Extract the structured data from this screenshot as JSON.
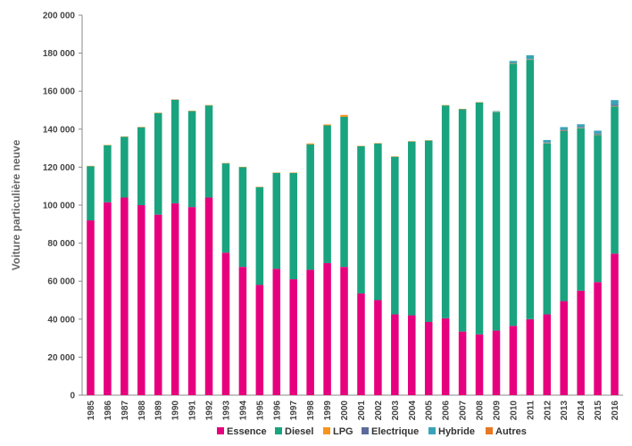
{
  "chart_data": {
    "type": "bar",
    "stacked": true,
    "title": "",
    "xlabel": "",
    "ylabel": "Voiture particulière neuve",
    "ylim": [
      0,
      200000
    ],
    "yticks": [
      0,
      20000,
      40000,
      60000,
      80000,
      100000,
      120000,
      140000,
      160000,
      180000,
      200000
    ],
    "ytick_labels": [
      "0",
      "20 000",
      "40 000",
      "60 000",
      "80 000",
      "100 000",
      "120 000",
      "140 000",
      "160 000",
      "180 000",
      "200 000"
    ],
    "grid": false,
    "legend_position": "bottom",
    "categories": [
      "1985",
      "1986",
      "1987",
      "1988",
      "1989",
      "1990",
      "1991",
      "1992",
      "1993",
      "1994",
      "1995",
      "1996",
      "1997",
      "1998",
      "1999",
      "2000",
      "2001",
      "2002",
      "2003",
      "2004",
      "2005",
      "2006",
      "2007",
      "2008",
      "2009",
      "2010",
      "2011",
      "2012",
      "2013",
      "2014",
      "2015",
      "2016"
    ],
    "series": [
      {
        "name": "Essence",
        "color": "#e6007e",
        "values": [
          92000,
          101500,
          104000,
          100000,
          95000,
          101000,
          99000,
          104000,
          75000,
          67500,
          58000,
          66500,
          61000,
          66000,
          69500,
          67500,
          53500,
          50000,
          42500,
          42000,
          38500,
          40500,
          33500,
          32000,
          34000,
          36500,
          40000,
          42500,
          49500,
          55000,
          59500,
          74500
        ]
      },
      {
        "name": "Diesel",
        "color": "#1aa37f",
        "values": [
          28500,
          30000,
          32000,
          41000,
          53500,
          54500,
          50500,
          48500,
          47000,
          52500,
          51500,
          50500,
          56000,
          66000,
          72500,
          79000,
          77500,
          82500,
          83000,
          91500,
          95500,
          112000,
          117000,
          122000,
          115000,
          138000,
          136500,
          90000,
          89500,
          85500,
          77500,
          77500
        ]
      },
      {
        "name": "LPG",
        "color": "#f7941d",
        "values": [
          200,
          200,
          200,
          200,
          200,
          200,
          200,
          200,
          200,
          200,
          200,
          200,
          200,
          500,
          500,
          1000,
          200,
          200,
          200,
          200,
          200,
          200,
          200,
          200,
          200,
          200,
          200,
          200,
          200,
          200,
          200,
          200
        ]
      },
      {
        "name": "Electrique",
        "color": "#5c6b9c",
        "values": [
          0,
          0,
          0,
          0,
          0,
          0,
          0,
          0,
          0,
          0,
          0,
          0,
          0,
          0,
          0,
          0,
          0,
          0,
          0,
          0,
          0,
          0,
          0,
          0,
          0,
          200,
          200,
          300,
          400,
          500,
          500,
          600
        ]
      },
      {
        "name": "Hybride",
        "color": "#3aa3b8",
        "values": [
          0,
          0,
          0,
          0,
          0,
          0,
          0,
          0,
          0,
          0,
          0,
          0,
          0,
          0,
          0,
          0,
          0,
          0,
          0,
          0,
          0,
          0,
          0,
          0,
          300,
          1000,
          2000,
          1300,
          1500,
          1400,
          1500,
          2500
        ]
      },
      {
        "name": "Autres",
        "color": "#e87722",
        "values": [
          0,
          0,
          0,
          0,
          0,
          0,
          0,
          0,
          0,
          0,
          0,
          0,
          0,
          0,
          0,
          0,
          0,
          0,
          0,
          0,
          0,
          0,
          0,
          0,
          0,
          0,
          0,
          0,
          0,
          0,
          0,
          0
        ]
      }
    ]
  }
}
